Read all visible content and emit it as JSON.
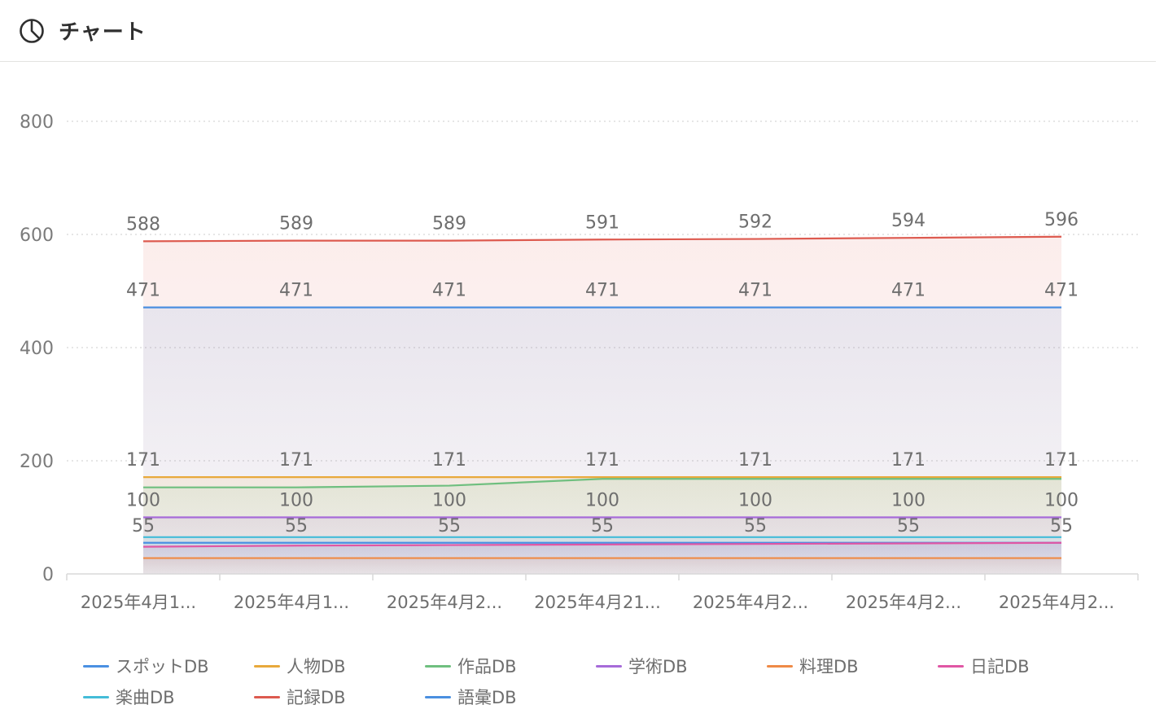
{
  "header": {
    "title": "チャート",
    "icon": "pie-chart-icon"
  },
  "chart_data": {
    "type": "area",
    "x": [
      "2025年4月1...",
      "2025年4月1...",
      "2025年4月2...",
      "2025年4月21...",
      "2025年4月2...",
      "2025年4月2...",
      "2025年4月2..."
    ],
    "ylim": [
      0,
      800
    ],
    "yticks": [
      0,
      200,
      400,
      600,
      800
    ],
    "grid": true,
    "legend_position": "bottom",
    "series": [
      {
        "name": "スポットDB",
        "color": "#4a90e2",
        "values": [
          55,
          55,
          55,
          55,
          55,
          55,
          55
        ]
      },
      {
        "name": "人物DB",
        "color": "#e8a93b",
        "values": [
          171,
          171,
          171,
          171,
          171,
          171,
          171
        ]
      },
      {
        "name": "作品DB",
        "color": "#6fbf7f",
        "values": [
          153,
          153,
          156,
          168,
          168,
          168,
          168
        ]
      },
      {
        "name": "学術DB",
        "color": "#a66bd9",
        "values": [
          100,
          100,
          100,
          100,
          100,
          100,
          100
        ]
      },
      {
        "name": "料理DB",
        "color": "#ef8a46",
        "values": [
          28,
          28,
          28,
          28,
          28,
          28,
          28
        ]
      },
      {
        "name": "日記DB",
        "color": "#e056a4",
        "values": [
          48,
          50,
          51,
          52,
          53,
          54,
          55
        ]
      },
      {
        "name": "楽曲DB",
        "color": "#44bcd8",
        "values": [
          65,
          65,
          65,
          65,
          65,
          65,
          65
        ]
      },
      {
        "name": "記録DB",
        "color": "#dd5a4f",
        "values": [
          588,
          589,
          589,
          591,
          592,
          594,
          596
        ]
      },
      {
        "name": "語彙DB",
        "color": "#4a8fe0",
        "values": [
          471,
          471,
          471,
          471,
          471,
          471,
          471
        ]
      }
    ],
    "data_labels": [
      {
        "series": "記録DB",
        "values": [
          588,
          589,
          589,
          591,
          592,
          594,
          596
        ]
      },
      {
        "series": "語彙DB",
        "values": [
          471,
          471,
          471,
          471,
          471,
          471,
          471
        ]
      },
      {
        "series": "人物DB",
        "values": [
          171,
          171,
          171,
          171,
          171,
          171,
          171
        ]
      },
      {
        "series": "学術DB",
        "values": [
          100,
          100,
          100,
          100,
          100,
          100,
          100
        ]
      },
      {
        "series": "スポットDB",
        "values": [
          55,
          55,
          55,
          55,
          55,
          55,
          55
        ]
      }
    ]
  }
}
